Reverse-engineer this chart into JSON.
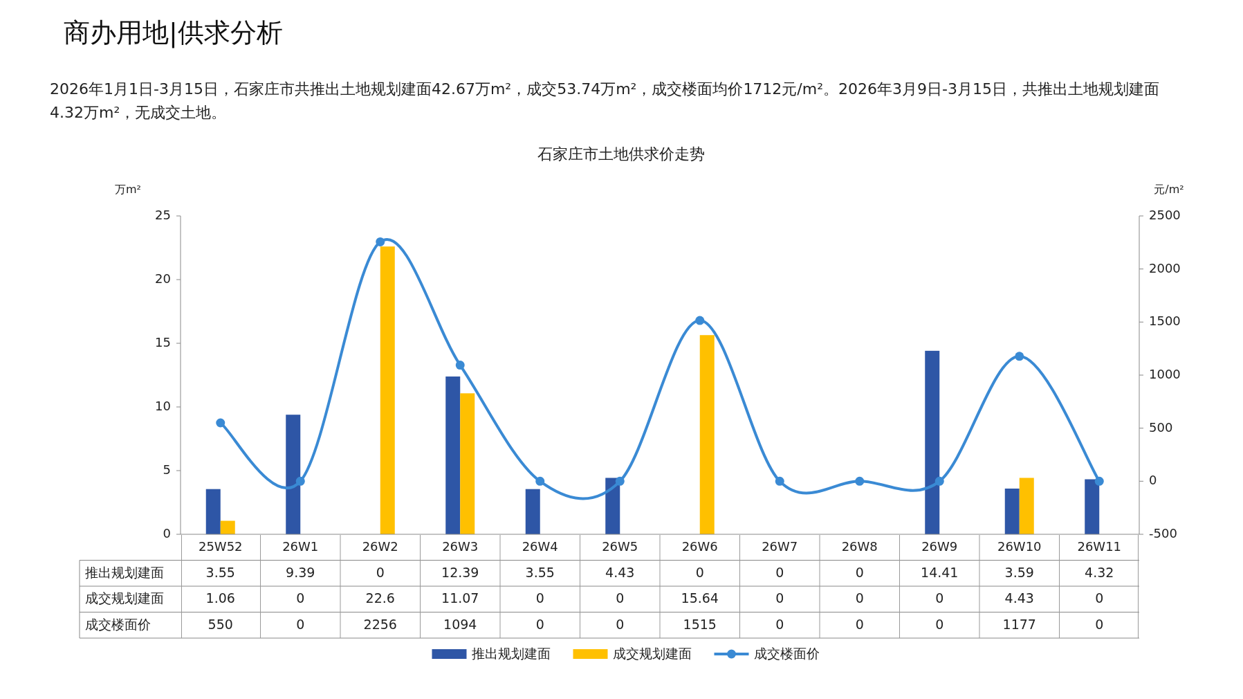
{
  "chart_data": {
    "type": "bar",
    "title": "石家庄市土地供求价走势",
    "annotations": [
      "商办用地|供求分析",
      "2026年1月1日-3月15日，石家庄市共推出土地规划建面42.67万m²，成交53.74万m²，成交楼面均价1712元/m²。2026年3月9日-3月15日，共推出土地规划建面4.32万m²，无成交土地。"
    ],
    "ylabel": "万m²",
    "y2label": "元/m²",
    "categories": [
      "25W52",
      "26W1",
      "26W2",
      "26W3",
      "26W4",
      "26W5",
      "26W6",
      "26W7",
      "26W8",
      "26W9",
      "26W10",
      "26W11"
    ],
    "series": [
      {
        "name": "推出规划建面",
        "color": "#2e56a6",
        "values": [
          3.55,
          9.39,
          0,
          12.39,
          3.55,
          4.43,
          0,
          0,
          0,
          14.41,
          3.59,
          4.32
        ]
      },
      {
        "name": "成交规划建面",
        "color": "#ffc000",
        "values": [
          1.06,
          0,
          22.6,
          11.07,
          0,
          0,
          15.64,
          0,
          0,
          0,
          4.43,
          0
        ]
      },
      {
        "name": "成交楼面价",
        "type": "line",
        "axis": "y2",
        "color": "#3a8ad4",
        "values": [
          550,
          0,
          2256,
          1094,
          0,
          0,
          1515,
          0,
          0,
          0,
          1177,
          0
        ]
      }
    ],
    "ylim": [
      0,
      25
    ],
    "yticks": [
      0,
      5,
      10,
      15,
      20,
      25
    ],
    "y2lim": [
      -500,
      2500
    ],
    "y2ticks": [
      -500,
      0,
      500,
      1000,
      1500,
      2000,
      2500
    ],
    "data_labels": true,
    "legend": "bottom",
    "marker": "circle",
    "grid": false
  }
}
